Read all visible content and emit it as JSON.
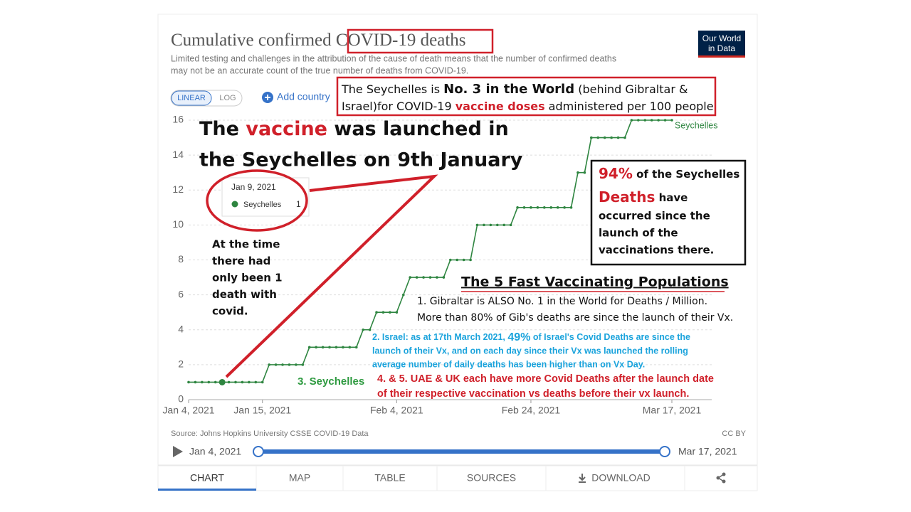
{
  "chart_data": {
    "type": "line",
    "title": "Cumulative confirmed COVID-19 deaths",
    "title_parts": [
      "Cumulative confirmed ",
      "COVID-19 deaths"
    ],
    "subtitle": [
      "Limited testing and challenges in the attribution of the cause of death means that the number of confirmed deaths",
      "may not be an accurate count of the true number of deaths from COVID-19."
    ],
    "x": [
      "2021-01-04",
      "2021-01-05",
      "2021-01-06",
      "2021-01-07",
      "2021-01-08",
      "2021-01-09",
      "2021-01-10",
      "2021-01-11",
      "2021-01-12",
      "2021-01-13",
      "2021-01-14",
      "2021-01-15",
      "2021-01-16",
      "2021-01-17",
      "2021-01-18",
      "2021-01-19",
      "2021-01-20",
      "2021-01-21",
      "2021-01-22",
      "2021-01-23",
      "2021-01-24",
      "2021-01-25",
      "2021-01-26",
      "2021-01-27",
      "2021-01-28",
      "2021-01-29",
      "2021-01-30",
      "2021-01-31",
      "2021-02-01",
      "2021-02-02",
      "2021-02-03",
      "2021-02-04",
      "2021-02-05",
      "2021-02-06",
      "2021-02-07",
      "2021-02-08",
      "2021-02-09",
      "2021-02-10",
      "2021-02-11",
      "2021-02-12",
      "2021-02-13",
      "2021-02-14",
      "2021-02-15",
      "2021-02-16",
      "2021-02-17",
      "2021-02-18",
      "2021-02-19",
      "2021-02-20",
      "2021-02-21",
      "2021-02-22",
      "2021-02-23",
      "2021-02-24",
      "2021-02-25",
      "2021-02-26",
      "2021-02-27",
      "2021-02-28",
      "2021-03-01",
      "2021-03-02",
      "2021-03-03",
      "2021-03-04",
      "2021-03-05",
      "2021-03-06",
      "2021-03-07",
      "2021-03-08",
      "2021-03-09",
      "2021-03-10",
      "2021-03-11",
      "2021-03-12",
      "2021-03-13",
      "2021-03-14",
      "2021-03-15",
      "2021-03-16",
      "2021-03-17"
    ],
    "series": [
      {
        "name": "Seychelles",
        "color": "#2e8540",
        "values": [
          1,
          1,
          1,
          1,
          1,
          1,
          1,
          1,
          1,
          1,
          1,
          1,
          2,
          2,
          2,
          2,
          2,
          2,
          3,
          3,
          3,
          3,
          3,
          3,
          3,
          3,
          4,
          4,
          5,
          5,
          5,
          5,
          6,
          7,
          7,
          7,
          7,
          7,
          7,
          8,
          8,
          8,
          8,
          10,
          10,
          10,
          10,
          10,
          10,
          11,
          11,
          11,
          11,
          11,
          11,
          11,
          11,
          11,
          13,
          13,
          15,
          15,
          15,
          15,
          15,
          15,
          16,
          16,
          16,
          16,
          16,
          16,
          16
        ]
      }
    ],
    "xlim": [
      "2021-01-04",
      "2021-03-17"
    ],
    "xticks": [
      {
        "value": "2021-01-04",
        "label": "Jan 4, 2021"
      },
      {
        "value": "2021-01-15",
        "label": "Jan 15, 2021"
      },
      {
        "value": "2021-02-04",
        "label": "Feb 4, 2021"
      },
      {
        "value": "2021-02-24",
        "label": "Feb 24, 2021"
      },
      {
        "value": "2021-03-17",
        "label": "Mar 17, 2021"
      }
    ],
    "ylim": [
      0,
      16
    ],
    "yticks": [
      0,
      2,
      4,
      6,
      8,
      10,
      12,
      14,
      16
    ],
    "grid": true,
    "tooltip": {
      "date": "Jan 9, 2021",
      "index": 5
    },
    "source": "Source: Johns Hopkins University CSSE COVID-19 Data",
    "license": "CC BY"
  },
  "logo": [
    "Our World",
    "in Data"
  ],
  "controls": {
    "scale": [
      "LINEAR",
      "LOG"
    ],
    "add_country": "Add country",
    "slider": [
      "Jan 4, 2021",
      "Mar 17, 2021"
    ]
  },
  "tabs": [
    "CHART",
    "MAP",
    "TABLE",
    "SOURCES",
    "DOWNLOAD"
  ],
  "annotations": {
    "ranking_box": [
      [
        "The Seychelles is ",
        "No. 3 in the World",
        " (behind Gibraltar &"
      ],
      [
        "Israel)for COVID-19 ",
        "vaccine doses",
        " administered per 100 people"
      ]
    ],
    "launch": [
      [
        "The ",
        "vaccine",
        " was launched in"
      ],
      [
        "the Seychelles on 9th January"
      ]
    ],
    "at_time": [
      "At the time",
      "there had",
      "only been 1",
      "death with",
      "covid."
    ],
    "deaths_box": [
      [
        "94%",
        " of the Seychelles"
      ],
      [
        "Deaths",
        " have"
      ],
      [
        "occurred since the"
      ],
      [
        "launch of the"
      ],
      [
        "vaccinations there."
      ]
    ],
    "populations_title": "The 5 Fast Vaccinating Populations",
    "gibraltar": [
      "1. Gibraltar is ALSO No. 1 in the World for Deaths / Million.",
      "More than 80% of Gib's deaths are since the launch of their Vx."
    ],
    "israel": [
      [
        "2. Israel: as at 17th March 2021, ",
        "49%",
        " of Israel's Covid Deaths are since the"
      ],
      [
        "launch of their Vx, and on each day since their Vx was launched the rolling"
      ],
      [
        "average number of daily deaths has been higher than on Vx Day."
      ]
    ],
    "seychelles": "3. Seychelles",
    "uae_uk": [
      "4. & 5. UAE & UK each have more Covid Deaths after the launch date",
      "of their respective vaccination vs deaths before their vx launch."
    ]
  }
}
